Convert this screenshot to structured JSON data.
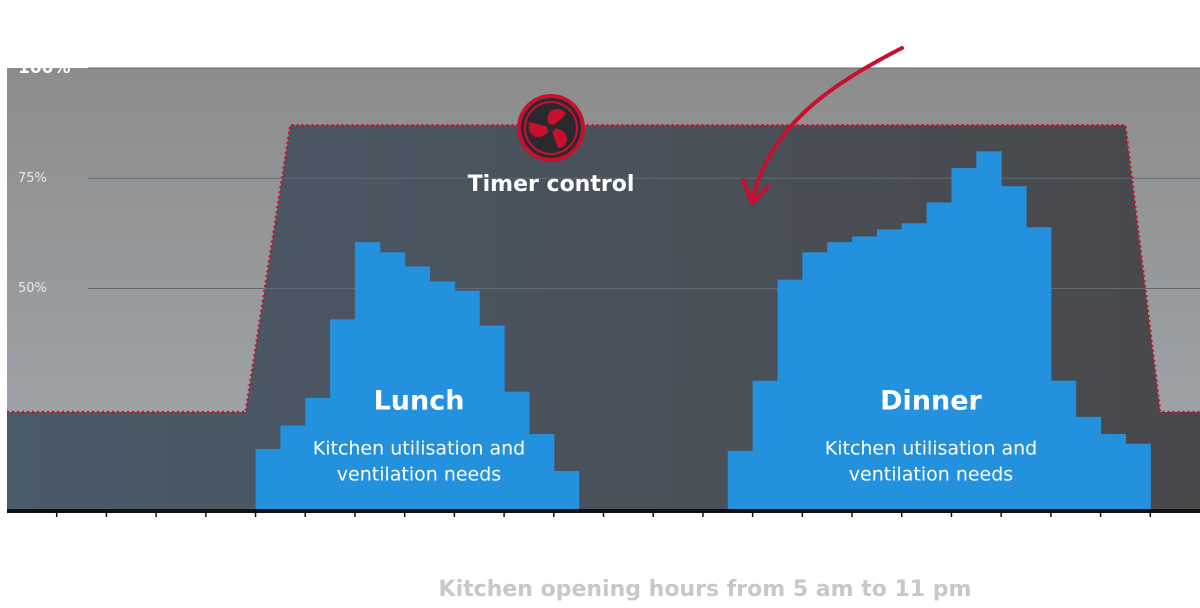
{
  "chart_data": {
    "type": "bar",
    "categories": [
      null,
      null,
      null,
      null,
      null,
      null,
      null,
      null,
      null,
      null,
      null,
      null,
      null,
      null,
      null,
      null,
      null,
      null,
      null,
      null,
      null,
      null,
      null,
      null,
      null,
      null,
      null,
      null,
      null,
      null,
      null,
      null,
      null,
      null,
      null,
      null,
      null,
      null,
      null,
      null,
      null,
      null,
      null,
      null,
      null,
      null,
      null,
      null
    ],
    "values": [
      null,
      null,
      null,
      null,
      null,
      null,
      null,
      null,
      null,
      null,
      13.6,
      18.9,
      25.2,
      43,
      60.5,
      58.2,
      55,
      51.6,
      49.5,
      41.6,
      26.6,
      17,
      8.6,
      null,
      null,
      null,
      null,
      null,
      null,
      13.2,
      29.1,
      52,
      58.2,
      60.5,
      61.8,
      63.4,
      64.8,
      69.5,
      77.3,
      81.1,
      73.2,
      63.9,
      29.1,
      20.9,
      17,
      14.8,
      null,
      null
    ],
    "color": "#2491de",
    "timer_control": {
      "label": "Timer control",
      "x": [
        0,
        9.6,
        11.4,
        45,
        46.4,
        48
      ],
      "values": [
        22,
        22,
        87,
        87,
        22,
        22
      ],
      "color": "#c8102e"
    },
    "annotations": [
      {
        "title": "Lunch",
        "text": [
          "Kitchen utilisation and",
          "ventilation needs"
        ]
      },
      {
        "title": "Dinner",
        "text": [
          "Kitchen utilisation and",
          "ventilation needs"
        ]
      }
    ],
    "ylim": [
      0,
      100
    ],
    "yticks": [
      {
        "value": 50,
        "label": "50%"
      },
      {
        "value": 75,
        "label": "75%"
      },
      {
        "value": 100,
        "label": "100%"
      }
    ],
    "grid": true,
    "x_label": "Kitchen opening hours from 5 am to 11 pm"
  }
}
